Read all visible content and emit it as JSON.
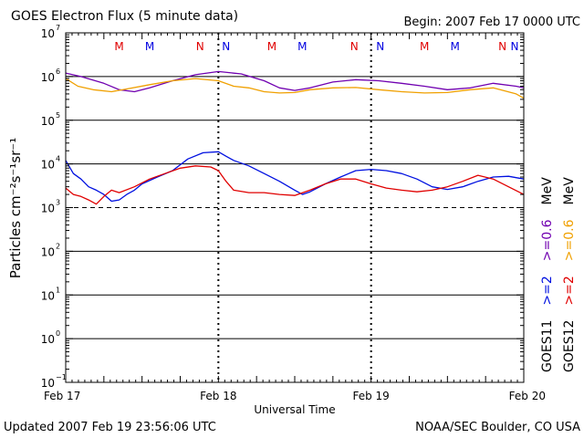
{
  "chart_data": {
    "type": "line",
    "title": "GOES Electron Flux (5 minute data)",
    "begin": "Begin: 2007 Feb 17 0000 UTC",
    "xlabel": "Universal Time",
    "ylabel": "Particles cm⁻²s⁻¹sr⁻¹",
    "x_ticks": [
      "Feb 17",
      "Feb 18",
      "Feb 19",
      "Feb 20"
    ],
    "x_range_days": [
      0,
      3
    ],
    "y_scale": "log",
    "y_exponents": [
      -1,
      0,
      1,
      2,
      3,
      4,
      5,
      6,
      7
    ],
    "y_tick_base": "10",
    "threshold_line": 1000,
    "marker_row": [
      {
        "label": "M",
        "day": 0.35,
        "color": "#e00000"
      },
      {
        "label": "M",
        "day": 0.55,
        "color": "#0000e0"
      },
      {
        "label": "N",
        "day": 0.88,
        "color": "#e00000"
      },
      {
        "label": "N",
        "day": 1.05,
        "color": "#0000e0"
      },
      {
        "label": "M",
        "day": 1.35,
        "color": "#e00000"
      },
      {
        "label": "M",
        "day": 1.55,
        "color": "#0000e0"
      },
      {
        "label": "N",
        "day": 1.89,
        "color": "#e00000"
      },
      {
        "label": "N",
        "day": 2.06,
        "color": "#0000e0"
      },
      {
        "label": "M",
        "day": 2.35,
        "color": "#e00000"
      },
      {
        "label": "M",
        "day": 2.55,
        "color": "#0000e0"
      },
      {
        "label": "N",
        "day": 2.86,
        "color": "#e00000"
      },
      {
        "label": "N",
        "day": 3.05,
        "color": "#0000e0"
      }
    ],
    "series": [
      {
        "name": ">=0.6 MeV",
        "satellite": "GOES11",
        "color": "#7000b0",
        "points": [
          [
            0,
            1200000.0
          ],
          [
            0.1,
            1000000.0
          ],
          [
            0.25,
            700000.0
          ],
          [
            0.35,
            500000.0
          ],
          [
            0.45,
            450000.0
          ],
          [
            0.55,
            550000.0
          ],
          [
            0.7,
            800000.0
          ],
          [
            0.85,
            1100000.0
          ],
          [
            1.0,
            1300000.0
          ],
          [
            1.15,
            1150000.0
          ],
          [
            1.3,
            800000.0
          ],
          [
            1.4,
            550000.0
          ],
          [
            1.5,
            480000.0
          ],
          [
            1.6,
            550000.0
          ],
          [
            1.75,
            750000.0
          ],
          [
            1.9,
            850000.0
          ],
          [
            2.05,
            800000.0
          ],
          [
            2.2,
            700000.0
          ],
          [
            2.35,
            600000.0
          ],
          [
            2.5,
            500000.0
          ],
          [
            2.65,
            550000.0
          ],
          [
            2.8,
            700000.0
          ],
          [
            2.95,
            600000.0
          ],
          [
            3.0,
            550000.0
          ]
        ]
      },
      {
        "name": ">=0.6 MeV",
        "satellite": "GOES12",
        "color": "#f0a000",
        "points": [
          [
            0,
            900000.0
          ],
          [
            0.08,
            600000.0
          ],
          [
            0.18,
            500000.0
          ],
          [
            0.3,
            450000.0
          ],
          [
            0.4,
            520000.0
          ],
          [
            0.55,
            650000.0
          ],
          [
            0.7,
            800000.0
          ],
          [
            0.85,
            900000.0
          ],
          [
            1.0,
            800000.0
          ],
          [
            1.1,
            600000.0
          ],
          [
            1.2,
            550000.0
          ],
          [
            1.3,
            450000.0
          ],
          [
            1.4,
            420000.0
          ],
          [
            1.5,
            430000.0
          ],
          [
            1.6,
            500000.0
          ],
          [
            1.75,
            550000.0
          ],
          [
            1.9,
            560000.0
          ],
          [
            2.05,
            500000.0
          ],
          [
            2.2,
            450000.0
          ],
          [
            2.35,
            420000.0
          ],
          [
            2.5,
            430000.0
          ],
          [
            2.65,
            500000.0
          ],
          [
            2.8,
            550000.0
          ],
          [
            2.95,
            400000.0
          ],
          [
            3.0,
            320000.0
          ]
        ]
      },
      {
        "name": ">=2 MeV",
        "satellite": "GOES11",
        "color": "#0010e0",
        "points": [
          [
            0,
            12000.0
          ],
          [
            0.05,
            6000.0
          ],
          [
            0.1,
            4500.0
          ],
          [
            0.15,
            3000.0
          ],
          [
            0.2,
            2500.0
          ],
          [
            0.25,
            2000.0
          ],
          [
            0.3,
            1400.0
          ],
          [
            0.35,
            1500.0
          ],
          [
            0.4,
            2000.0
          ],
          [
            0.45,
            2500.0
          ],
          [
            0.5,
            3500.0
          ],
          [
            0.6,
            5000.0
          ],
          [
            0.7,
            7000.0
          ],
          [
            0.8,
            13000.0
          ],
          [
            0.9,
            18000.0
          ],
          [
            1.0,
            19000.0
          ],
          [
            1.05,
            15000.0
          ],
          [
            1.1,
            12000.0
          ],
          [
            1.2,
            9000.0
          ],
          [
            1.3,
            6000.0
          ],
          [
            1.4,
            4000.0
          ],
          [
            1.5,
            2500.0
          ],
          [
            1.55,
            2000.0
          ],
          [
            1.6,
            2300.0
          ],
          [
            1.7,
            3500.0
          ],
          [
            1.8,
            5000.0
          ],
          [
            1.9,
            7000.0
          ],
          [
            2.0,
            7500.0
          ],
          [
            2.1,
            7000.0
          ],
          [
            2.2,
            6000.0
          ],
          [
            2.3,
            4500.0
          ],
          [
            2.4,
            3000.0
          ],
          [
            2.5,
            2600.0
          ],
          [
            2.6,
            3000.0
          ],
          [
            2.7,
            4000.0
          ],
          [
            2.8,
            5000.0
          ],
          [
            2.9,
            5200.0
          ],
          [
            3.0,
            4500.0
          ]
        ]
      },
      {
        "name": ">=2 MeV",
        "satellite": "GOES12",
        "color": "#e00000",
        "points": [
          [
            0,
            2800.0
          ],
          [
            0.05,
            2000.0
          ],
          [
            0.1,
            1800.0
          ],
          [
            0.15,
            1500.0
          ],
          [
            0.2,
            1200.0
          ],
          [
            0.25,
            1800.0
          ],
          [
            0.3,
            2500.0
          ],
          [
            0.35,
            2200.0
          ],
          [
            0.45,
            3000.0
          ],
          [
            0.55,
            4500.0
          ],
          [
            0.65,
            6000.0
          ],
          [
            0.75,
            8000.0
          ],
          [
            0.85,
            9000.0
          ],
          [
            0.95,
            8500.0
          ],
          [
            1.0,
            7000.0
          ],
          [
            1.05,
            4000.0
          ],
          [
            1.1,
            2500.0
          ],
          [
            1.2,
            2200.0
          ],
          [
            1.3,
            2200.0
          ],
          [
            1.4,
            2000.0
          ],
          [
            1.5,
            1900.0
          ],
          [
            1.6,
            2500.0
          ],
          [
            1.7,
            3500.0
          ],
          [
            1.8,
            4500.0
          ],
          [
            1.9,
            4500.0
          ],
          [
            2.0,
            3500.0
          ],
          [
            2.1,
            2800.0
          ],
          [
            2.2,
            2500.0
          ],
          [
            2.3,
            2300.0
          ],
          [
            2.4,
            2500.0
          ],
          [
            2.5,
            3000.0
          ],
          [
            2.6,
            4000.0
          ],
          [
            2.7,
            5500.0
          ],
          [
            2.8,
            4500.0
          ],
          [
            2.9,
            3000.0
          ],
          [
            3.0,
            2000.0
          ]
        ]
      }
    ],
    "legend": {
      "goes11_label": "GOES11",
      "goes12_label": "GOES12",
      "goes11_entries": [
        {
          "text": ">=2",
          "color": "#0010e0"
        },
        {
          "text": ">=0.6",
          "color": "#7000b0"
        },
        {
          "text": "MeV",
          "color": "#000000"
        }
      ],
      "goes12_entries": [
        {
          "text": ">=2",
          "color": "#e00000"
        },
        {
          "text": ">=0.6",
          "color": "#f0a000"
        },
        {
          "text": "MeV",
          "color": "#000000"
        }
      ]
    },
    "grid": true
  },
  "footer": {
    "updated": "Updated 2007 Feb 19 23:56:06 UTC",
    "credit": "NOAA/SEC Boulder, CO USA"
  }
}
